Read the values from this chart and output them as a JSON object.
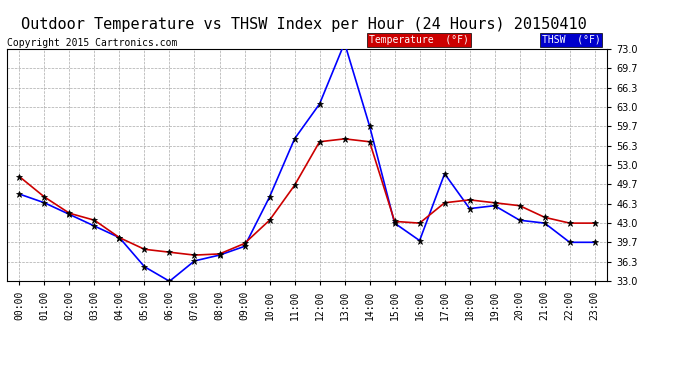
{
  "title": "Outdoor Temperature vs THSW Index per Hour (24 Hours) 20150410",
  "copyright": "Copyright 2015 Cartronics.com",
  "hours": [
    "00:00",
    "01:00",
    "02:00",
    "03:00",
    "04:00",
    "05:00",
    "06:00",
    "07:00",
    "08:00",
    "09:00",
    "10:00",
    "11:00",
    "12:00",
    "13:00",
    "14:00",
    "15:00",
    "16:00",
    "17:00",
    "18:00",
    "19:00",
    "20:00",
    "21:00",
    "22:00",
    "23:00"
  ],
  "thsw": [
    48.0,
    46.5,
    44.5,
    42.5,
    40.5,
    35.5,
    33.0,
    36.5,
    37.5,
    39.0,
    47.5,
    57.5,
    63.5,
    74.0,
    59.7,
    43.0,
    40.0,
    51.5,
    45.5,
    46.0,
    43.5,
    43.0,
    39.7,
    39.7
  ],
  "temperature": [
    51.0,
    47.5,
    44.7,
    43.5,
    40.5,
    38.5,
    38.0,
    37.5,
    37.7,
    39.5,
    43.5,
    49.5,
    57.0,
    57.5,
    57.0,
    43.3,
    43.0,
    46.5,
    47.0,
    46.5,
    46.0,
    44.0,
    43.0,
    43.0
  ],
  "ylim": [
    33.0,
    73.0
  ],
  "yticks": [
    33.0,
    36.3,
    39.7,
    43.0,
    46.3,
    49.7,
    53.0,
    56.3,
    59.7,
    63.0,
    66.3,
    69.7,
    73.0
  ],
  "thsw_color": "#0000ff",
  "temp_color": "#cc0000",
  "bg_color": "#ffffff",
  "grid_color": "#aaaaaa",
  "title_fontsize": 11,
  "copyright_fontsize": 7,
  "tick_fontsize": 7,
  "legend_thsw_bg": "#0000cc",
  "legend_temp_bg": "#cc0000",
  "legend_text_color": "#ffffff",
  "legend_thsw_label": "THSW  (°F)",
  "legend_temp_label": "Temperature  (°F)"
}
